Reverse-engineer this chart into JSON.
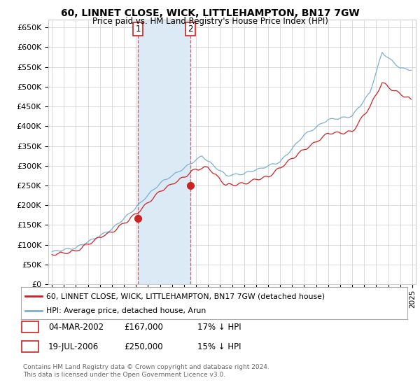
{
  "title": "60, LINNET CLOSE, WICK, LITTLEHAMPTON, BN17 7GW",
  "subtitle": "Price paid vs. HM Land Registry's House Price Index (HPI)",
  "ylim": [
    0,
    670000
  ],
  "yticks": [
    0,
    50000,
    100000,
    150000,
    200000,
    250000,
    300000,
    350000,
    400000,
    450000,
    500000,
    550000,
    600000,
    650000
  ],
  "ytick_labels": [
    "£0",
    "£50K",
    "£100K",
    "£150K",
    "£200K",
    "£250K",
    "£300K",
    "£350K",
    "£400K",
    "£450K",
    "£500K",
    "£550K",
    "£600K",
    "£650K"
  ],
  "xlim_start": 1994.7,
  "xlim_end": 2025.3,
  "purchase1_x": 2002.17,
  "purchase1_y": 167000,
  "purchase2_x": 2006.54,
  "purchase2_y": 250000,
  "purchase1_date": "04-MAR-2002",
  "purchase1_price": "£167,000",
  "purchase1_hpi": "17% ↓ HPI",
  "purchase2_date": "19-JUL-2006",
  "purchase2_price": "£250,000",
  "purchase2_hpi": "15% ↓ HPI",
  "hpi_color": "#7bafd4",
  "price_color": "#cc2222",
  "vline_color": "#cc2222",
  "highlight_color": "#dceaf5",
  "legend_line1": "60, LINNET CLOSE, WICK, LITTLEHAMPTON, BN17 7GW (detached house)",
  "legend_line2": "HPI: Average price, detached house, Arun",
  "footer1": "Contains HM Land Registry data © Crown copyright and database right 2024.",
  "footer2": "This data is licensed under the Open Government Licence v3.0.",
  "background_color": "#ffffff",
  "grid_color": "#cccccc"
}
